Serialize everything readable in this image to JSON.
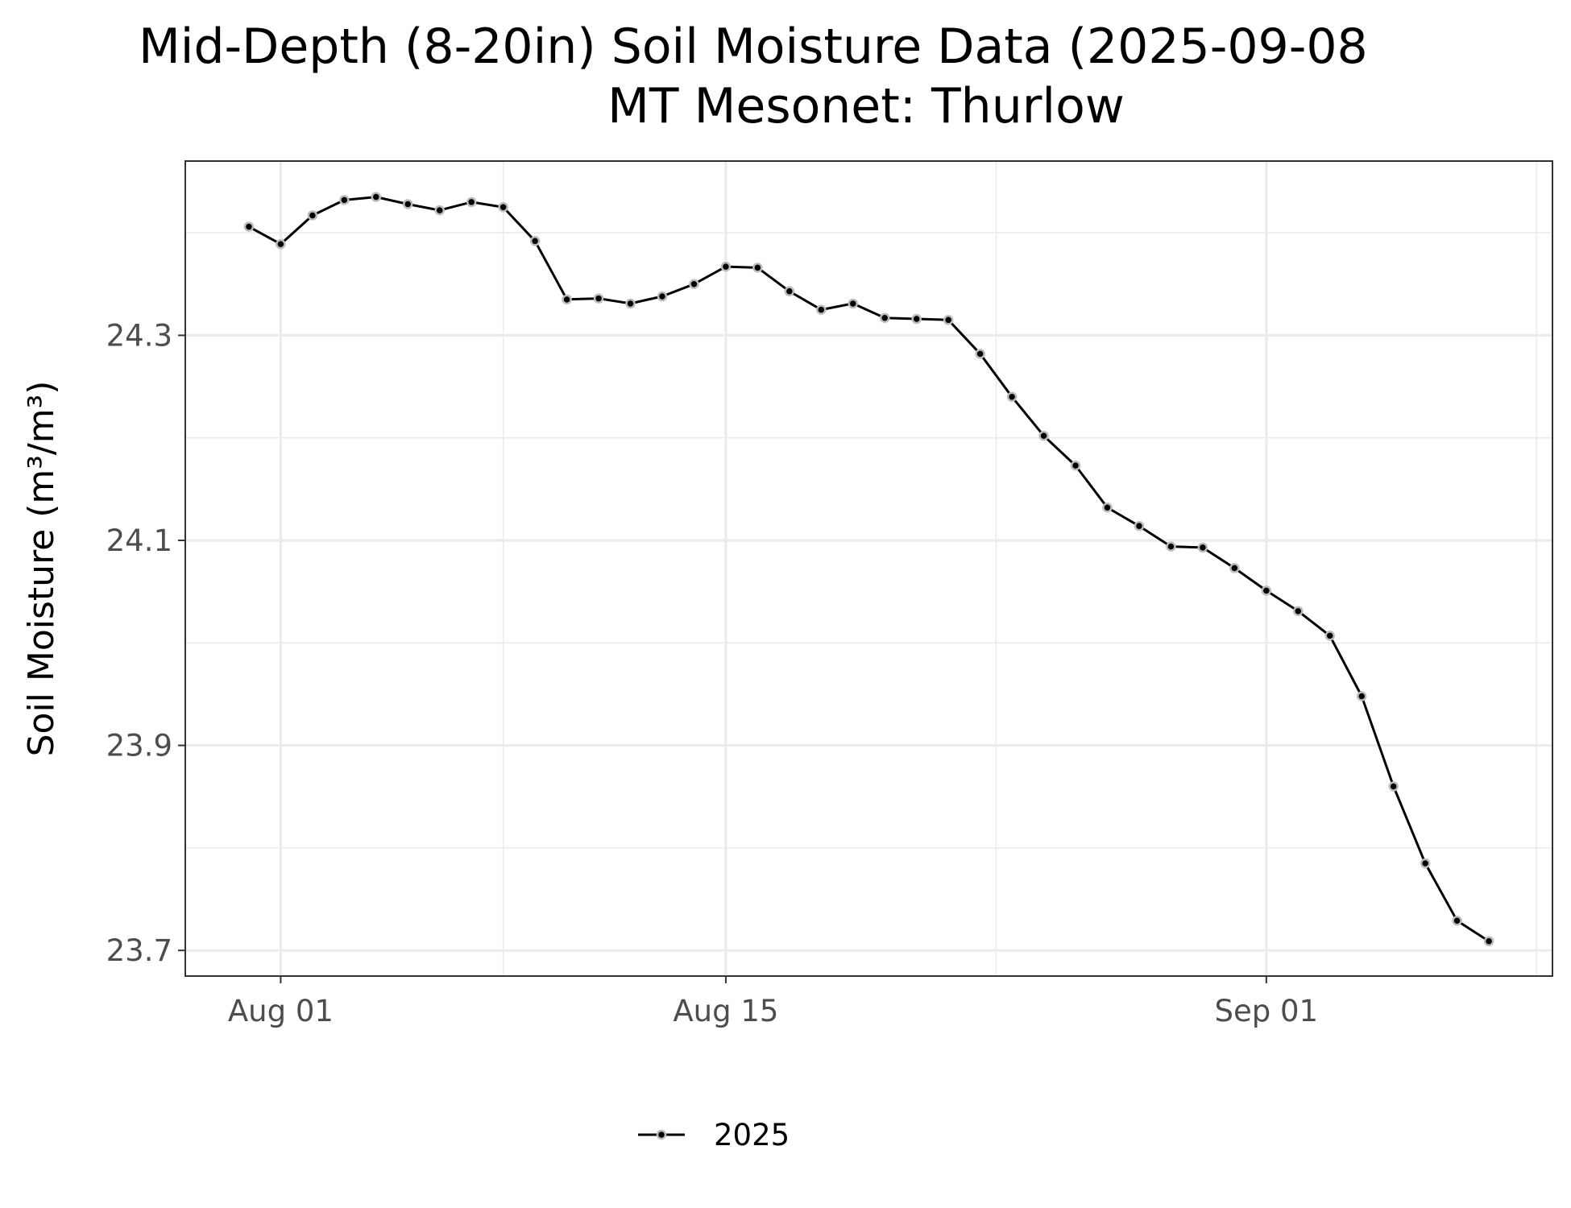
{
  "chart_data": {
    "type": "line",
    "title": "Mid-Depth (8-20in) Soil Moisture Data (2025-09-08",
    "subtitle": "MT Mesonet: Thurlow",
    "xlabel": "",
    "ylabel": "Soil Moisture (m³/m³)",
    "x_tick_labels": [
      {
        "label": "Aug 01",
        "date": "2025-08-01"
      },
      {
        "label": "Aug 15",
        "date": "2025-08-15"
      },
      {
        "label": "Sep 01",
        "date": "2025-09-01"
      }
    ],
    "y_ticks": [
      23.7,
      23.9,
      24.1,
      24.3
    ],
    "ylim": [
      23.675,
      24.47
    ],
    "xlim": [
      "2025-07-29",
      "2025-09-10"
    ],
    "grid": true,
    "legend_position": "bottom",
    "series": [
      {
        "name": "2025",
        "color": "#000000",
        "marker_outline": "#bbbbbb",
        "x": [
          "2025-07-31",
          "2025-08-01",
          "2025-08-02",
          "2025-08-03",
          "2025-08-04",
          "2025-08-05",
          "2025-08-06",
          "2025-08-07",
          "2025-08-08",
          "2025-08-09",
          "2025-08-10",
          "2025-08-11",
          "2025-08-12",
          "2025-08-13",
          "2025-08-14",
          "2025-08-15",
          "2025-08-16",
          "2025-08-17",
          "2025-08-18",
          "2025-08-19",
          "2025-08-20",
          "2025-08-21",
          "2025-08-22",
          "2025-08-23",
          "2025-08-24",
          "2025-08-25",
          "2025-08-26",
          "2025-08-27",
          "2025-08-28",
          "2025-08-29",
          "2025-08-30",
          "2025-08-31",
          "2025-09-01",
          "2025-09-02",
          "2025-09-03",
          "2025-09-04",
          "2025-09-05",
          "2025-09-06",
          "2025-09-07",
          "2025-09-08"
        ],
        "values": [
          24.406,
          24.389,
          24.417,
          24.432,
          24.435,
          24.428,
          24.422,
          24.43,
          24.425,
          24.392,
          24.335,
          24.336,
          24.331,
          24.338,
          24.35,
          24.367,
          24.366,
          24.343,
          24.325,
          24.331,
          24.317,
          24.316,
          24.315,
          24.282,
          24.24,
          24.202,
          24.173,
          24.132,
          24.114,
          24.094,
          24.093,
          24.073,
          24.051,
          24.031,
          24.007,
          23.948,
          23.86,
          23.785,
          23.729,
          23.709
        ]
      }
    ]
  }
}
